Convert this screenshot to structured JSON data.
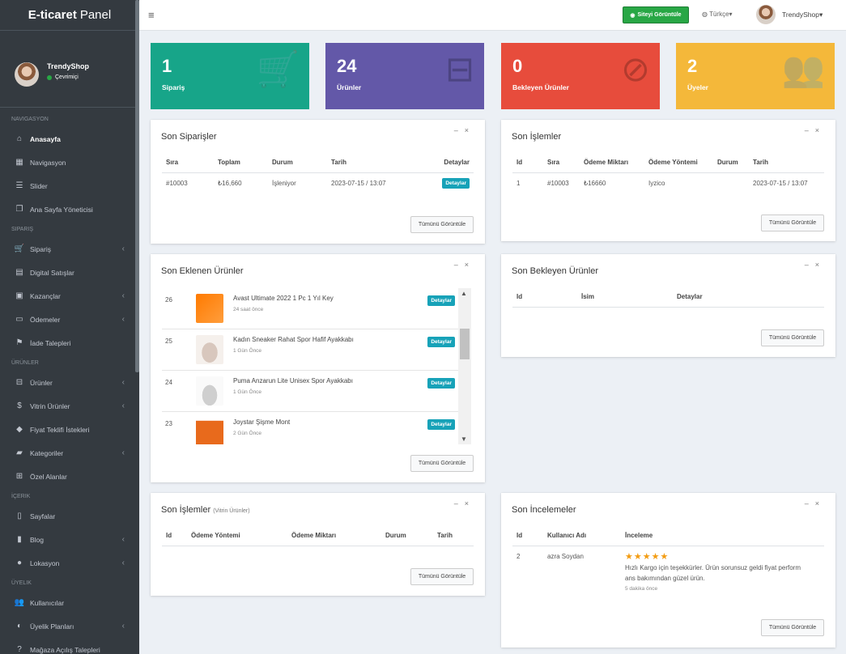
{
  "app": {
    "brand_bold": "E-ticaret",
    "brand_rest": "Panel"
  },
  "sidebar": {
    "user": {
      "name": "TrendyShop",
      "status": "Çevrimiçi"
    },
    "sections": [
      {
        "header": "NAVIGASYON",
        "items": [
          {
            "label": "Anasayfa",
            "icon": "home-icon",
            "active": true
          },
          {
            "label": "Navigasyon",
            "icon": "grid-icon"
          },
          {
            "label": "Slider",
            "icon": "sliders-icon"
          },
          {
            "label": "Ana Sayfa Yöneticisi",
            "icon": "copy-icon"
          }
        ]
      },
      {
        "header": "SIPARIŞ",
        "items": [
          {
            "label": "Sipariş",
            "icon": "cart-icon",
            "arrow": true
          },
          {
            "label": "Digital Satışlar",
            "icon": "shop-icon"
          },
          {
            "label": "Kazançlar",
            "icon": "money-icon",
            "arrow": true
          },
          {
            "label": "Ödemeler",
            "icon": "credit-card-icon",
            "arrow": true
          },
          {
            "label": "İade Talepleri",
            "icon": "flag-icon"
          }
        ]
      },
      {
        "header": "ÜRÜNLER",
        "items": [
          {
            "label": "Ürünler",
            "icon": "basket-icon",
            "arrow": true
          },
          {
            "label": "Vitrin Ürünler",
            "icon": "dollar-icon",
            "arrow": true
          },
          {
            "label": "Fiyat Teklifi İstekleri",
            "icon": "tag-icon"
          },
          {
            "label": "Kategoriler",
            "icon": "folder-icon",
            "arrow": true
          },
          {
            "label": "Özel Alanlar",
            "icon": "plus-square-icon"
          }
        ]
      },
      {
        "header": "İÇERIK",
        "items": [
          {
            "label": "Sayfalar",
            "icon": "file-icon"
          },
          {
            "label": "Blog",
            "icon": "book-icon",
            "arrow": true
          },
          {
            "label": "Lokasyon",
            "icon": "map-marker-icon",
            "arrow": true
          }
        ]
      },
      {
        "header": "ÜYELIK",
        "items": [
          {
            "label": "Kullanıcılar",
            "icon": "users-icon"
          },
          {
            "label": "Üyelik Planları",
            "icon": "adjust-icon",
            "arrow": true
          },
          {
            "label": "Mağaza Açılış Talepleri",
            "icon": "question-circle-icon"
          }
        ]
      }
    ]
  },
  "topbar": {
    "site_button": "Siteyi Görüntüle",
    "language": "Türkçe",
    "user": "TrendyShop"
  },
  "stats": [
    {
      "value": "1",
      "label": "Sipariş",
      "color": "#17a589",
      "icon": "cart-icon"
    },
    {
      "value": "24",
      "label": "Ürünler",
      "color": "#6358a8",
      "icon": "basket-icon"
    },
    {
      "value": "0",
      "label": "Bekleyen Ürünler",
      "color": "#e74c3c",
      "icon": "eye-slash-icon"
    },
    {
      "value": "2",
      "label": "Üyeler",
      "color": "#f4b83a",
      "icon": "users-icon"
    }
  ],
  "view_all": "Tümünü Görüntüle",
  "details": "Detaylar",
  "recent_orders": {
    "title": "Son Siparişler",
    "columns": [
      "Sıra",
      "Toplam",
      "Durum",
      "Tarih",
      "Detaylar"
    ],
    "rows": [
      [
        "#10003",
        "₺16,660",
        "İşleniyor",
        "2023-07-15 / 13:07"
      ]
    ]
  },
  "recent_transactions": {
    "title": "Son İşlemler",
    "columns": [
      "Id",
      "Sıra",
      "Ödeme Miktarı",
      "Ödeme Yöntemi",
      "Durum",
      "Tarih"
    ],
    "rows": [
      [
        "1",
        "#10003",
        "₺16660",
        "Iyzico",
        "",
        "2023-07-15 / 13:07"
      ]
    ]
  },
  "recent_products": {
    "title": "Son Eklenen Ürünler",
    "items": [
      {
        "id": "26",
        "name": "Avast Ultimate 2022 1 Pc 1 Yıl Key",
        "time": "24 saat önce"
      },
      {
        "id": "25",
        "name": "Kadın Sneaker Rahat Spor Hafif Ayakkabı",
        "time": "1 Gün Önce"
      },
      {
        "id": "24",
        "name": "Puma Anzarun Lite Unisex Spor Ayakkabı",
        "time": "1 Gün Önce"
      },
      {
        "id": "23",
        "name": "Joystar Şişme Mont",
        "time": "2 Gün Önce"
      }
    ]
  },
  "pending_products": {
    "title": "Son Bekleyen Ürünler",
    "columns": [
      "Id",
      "İsim",
      "Detaylar"
    ]
  },
  "showcase_transactions": {
    "title": "Son İşlemler",
    "subtitle": "(Vitrin Ürünler)",
    "columns": [
      "Id",
      "Ödeme Yöntemi",
      "Ödeme Miktarı",
      "Durum",
      "Tarih"
    ]
  },
  "reviews": {
    "title": "Son İncelemeler",
    "columns": [
      "Id",
      "Kullanıcı Adı",
      "İnceleme"
    ],
    "rows": [
      {
        "id": "2",
        "user": "azra Soydan",
        "rating": 5,
        "text_line1": "Hızlı Kargo için teşekkürler. Ürün sorunsuz geldi fiyat perform",
        "text_line2": "ans bakımından güzel ürün.",
        "time": "5 dakika önce"
      }
    ]
  }
}
